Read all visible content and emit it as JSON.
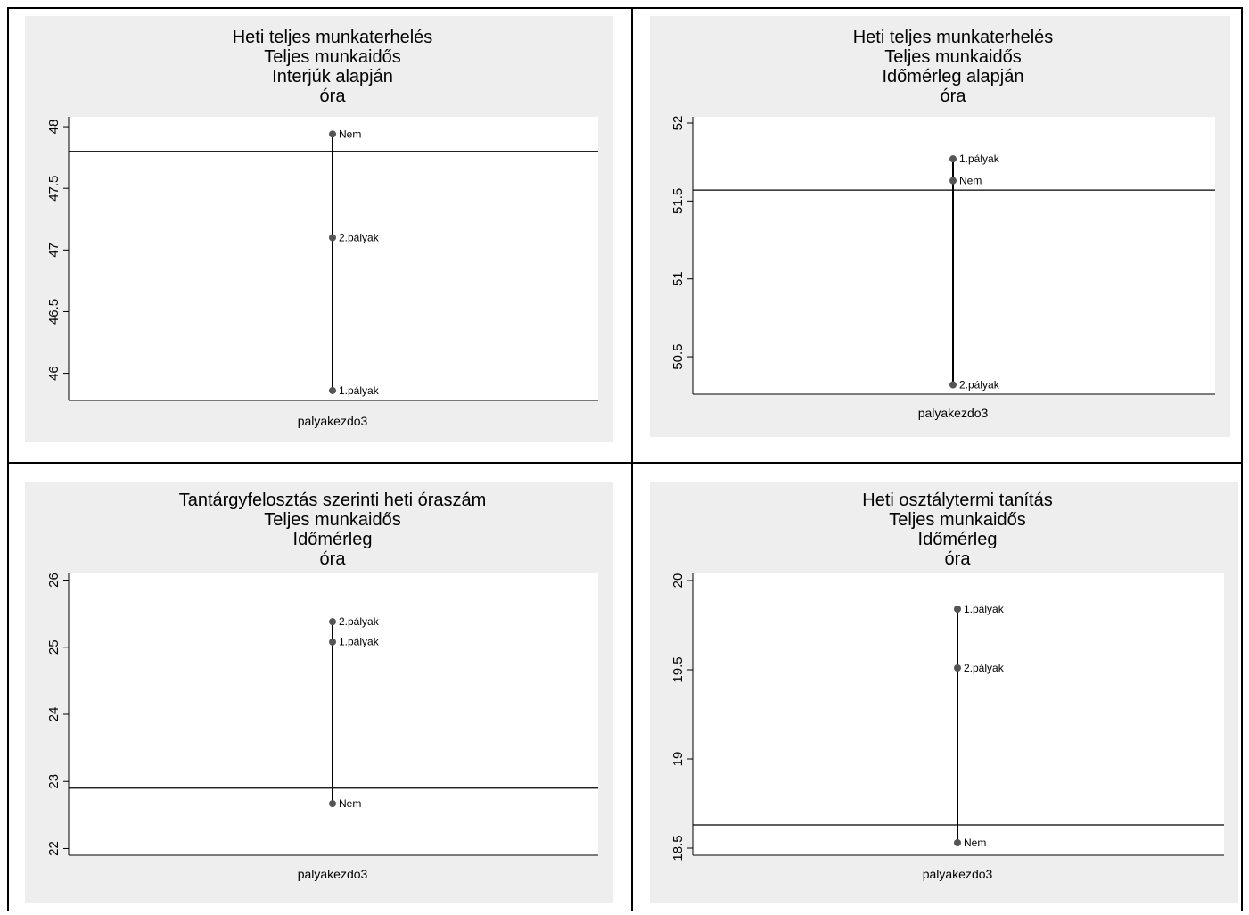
{
  "chart_data": [
    {
      "type": "dropline",
      "title_lines": [
        "Heti teljes munkaterhelés",
        "Teljes munkaidős",
        "Interjúk alapján",
        "óra"
      ],
      "xlabel": "palyakezdo3",
      "ylim": [
        45.78,
        48.08
      ],
      "yticks": [
        46,
        46.5,
        47,
        47.5,
        48
      ],
      "ytick_labels": [
        "46",
        "46.5",
        "47",
        "47.5",
        "48"
      ],
      "reference_line": 47.8,
      "points": [
        {
          "label": "Nem",
          "value": 47.94
        },
        {
          "label": "2.pályak",
          "value": 47.1
        },
        {
          "label": "1.pályak",
          "value": 45.86
        }
      ]
    },
    {
      "type": "dropline",
      "title_lines": [
        "Heti teljes munkaterhelés",
        "Teljes munkaidős",
        "Időmérleg alapján",
        "óra"
      ],
      "xlabel": "palyakezdo3",
      "ylim": [
        50.26,
        52.04
      ],
      "yticks": [
        50.5,
        51,
        51.5,
        52
      ],
      "ytick_labels": [
        "50.5",
        "51",
        "51.5",
        "52"
      ],
      "reference_line": 51.57,
      "points": [
        {
          "label": "1.pályak",
          "value": 51.77
        },
        {
          "label": "Nem",
          "value": 51.63
        },
        {
          "label": "2.pályak",
          "value": 50.32
        }
      ]
    },
    {
      "type": "dropline",
      "title_lines": [
        "Tantárgyfelosztás szerinti heti óraszám",
        "Teljes munkaidős",
        "Időmérleg",
        "óra"
      ],
      "xlabel": "palyakezdo3",
      "ylim": [
        21.9,
        26.1
      ],
      "yticks": [
        22,
        23,
        24,
        25,
        26
      ],
      "ytick_labels": [
        "22",
        "23",
        "24",
        "25",
        "26"
      ],
      "reference_line": 22.9,
      "points": [
        {
          "label": "2.pályak",
          "value": 25.38
        },
        {
          "label": "1.pályak",
          "value": 25.08
        },
        {
          "label": "Nem",
          "value": 22.67
        }
      ]
    },
    {
      "type": "dropline",
      "title_lines": [
        "Heti osztálytermi tanítás",
        "Teljes munkaidős",
        "Időmérleg",
        "óra"
      ],
      "xlabel": "palyakezdo3",
      "ylim": [
        18.46,
        20.04
      ],
      "yticks": [
        18.5,
        19,
        19.5,
        20
      ],
      "ytick_labels": [
        "18.5",
        "19",
        "19.5",
        "20"
      ],
      "reference_line": 18.63,
      "points": [
        {
          "label": "1.pályak",
          "value": 19.84
        },
        {
          "label": "2.pályak",
          "value": 19.51
        },
        {
          "label": "Nem",
          "value": 18.53
        }
      ]
    }
  ]
}
